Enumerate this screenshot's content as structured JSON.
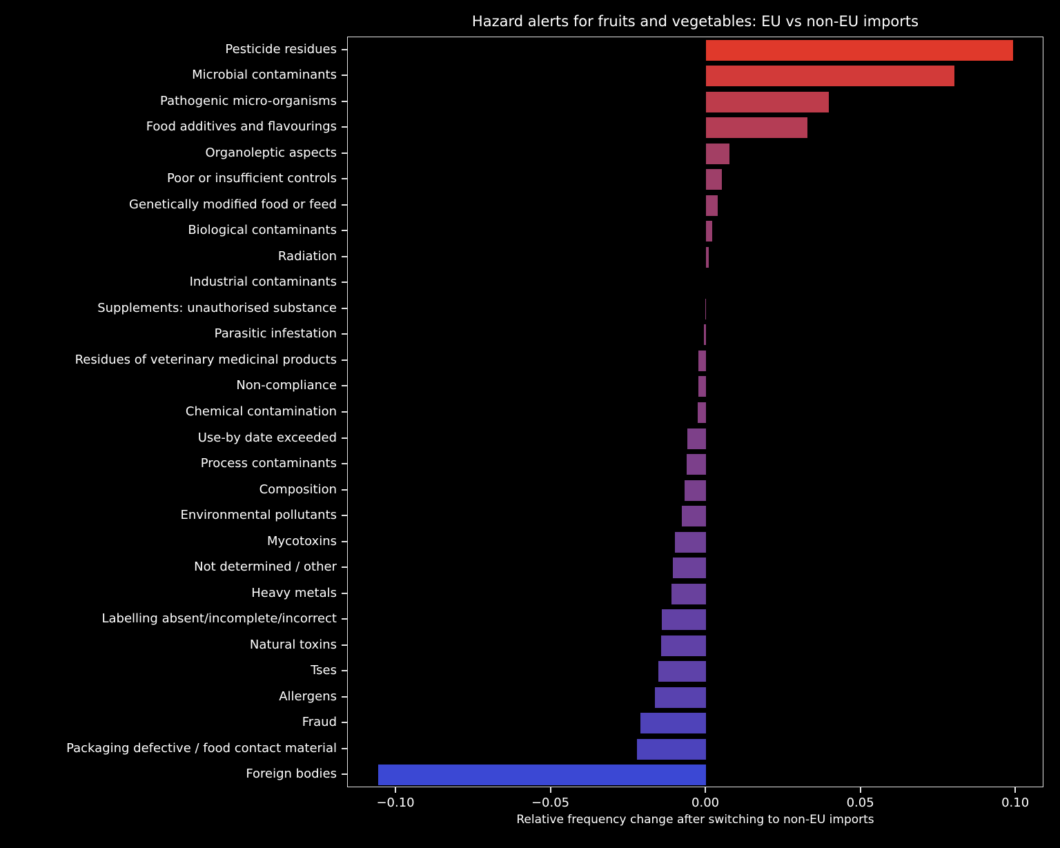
{
  "chart_data": {
    "type": "bar",
    "orientation": "horizontal",
    "title": "Hazard alerts for fruits and vegetables: EU vs non-EU imports",
    "xlabel": "Relative frequency change after switching to non-EU imports",
    "ylabel": "",
    "grid": false,
    "legend": null,
    "background_color": "#000000",
    "text_color": "#ffffff",
    "spine_color": "#e7e7e7",
    "xlim": [
      -0.1156,
      0.1091
    ],
    "xticks": [
      -0.1,
      -0.05,
      0.0,
      0.05,
      0.1
    ],
    "xtick_labels": [
      "−0.10",
      "−0.05",
      "0.00",
      "0.05",
      "0.10"
    ],
    "categories": [
      "Pesticide residues",
      "Microbial contaminants",
      "Pathogenic micro-organisms",
      "Food additives and flavourings",
      "Organoleptic aspects",
      "Poor or insufficient controls",
      "Genetically modified food or feed",
      "Biological contaminants",
      "Radiation",
      "Industrial contaminants",
      "Supplements: unauthorised substance",
      "Parasitic infestation",
      "Residues of veterinary medicinal products",
      "Non-compliance",
      "Chemical contamination",
      "Use-by date exceeded",
      "Process contaminants",
      "Composition",
      "Environmental pollutants",
      "Mycotoxins",
      "Not determined / other",
      "Heavy metals",
      "Labelling absent/incomplete/incorrect",
      "Natural toxins",
      "Tses",
      "Allergens",
      "Fraud",
      "Packaging defective / food contact material",
      "Foreign bodies"
    ],
    "values": [
      0.0991,
      0.0802,
      0.0396,
      0.0327,
      0.0076,
      0.0051,
      0.0038,
      0.0019,
      0.0008,
      0.0,
      -0.0003,
      -0.0007,
      -0.0024,
      -0.0025,
      -0.0027,
      -0.006,
      -0.0062,
      -0.0069,
      -0.0078,
      -0.01,
      -0.0107,
      -0.0111,
      -0.0142,
      -0.0144,
      -0.0153,
      -0.0165,
      -0.0212,
      -0.0223,
      -0.1059
    ],
    "bar_colors": [
      "#e0392b",
      "#d23a39",
      "#bd3c4b",
      "#b43d55",
      "#a33f64",
      "#9e3f69",
      "#9b3f6c",
      "#983f6f",
      "#954072",
      "#924075",
      "#904078",
      "#8e407a",
      "#8a407e",
      "#894080",
      "#874082",
      "#7d4089",
      "#7c408b",
      "#79408d",
      "#764090",
      "#6f4197",
      "#6c419b",
      "#69419d",
      "#6241a5",
      "#6041a7",
      "#5e42a9",
      "#5842af",
      "#4f43b9",
      "#4c43bc",
      "#3b48d4"
    ]
  }
}
